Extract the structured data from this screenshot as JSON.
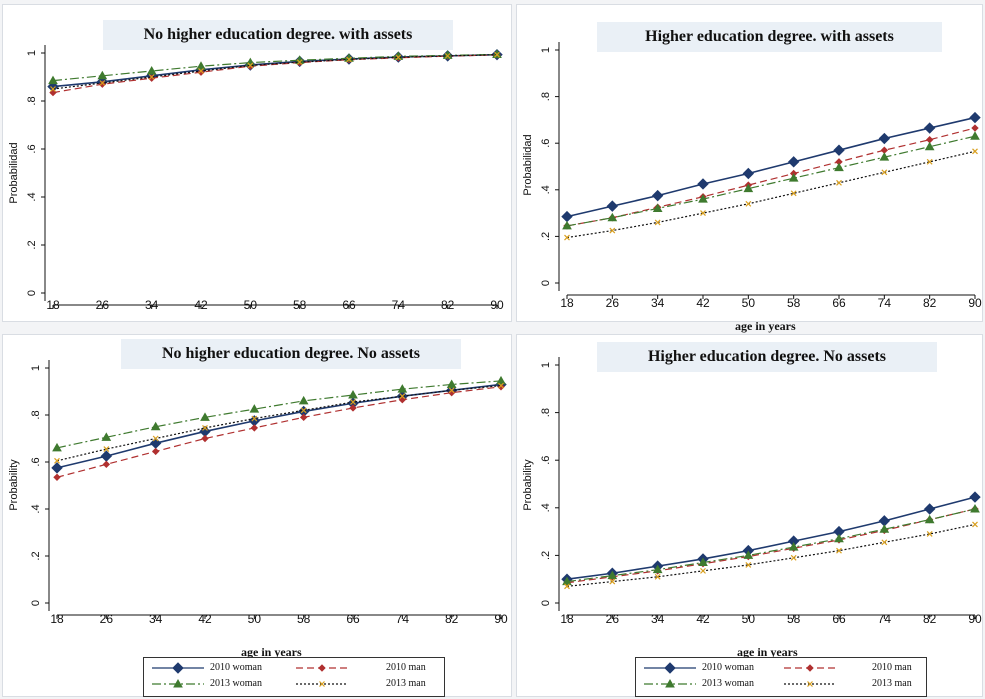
{
  "chart_data": [
    {
      "type": "line",
      "title": "No higher education degree. with assets",
      "ylabel": "Probabilidad",
      "xlabel": "",
      "x": [
        18,
        26,
        34,
        42,
        50,
        58,
        66,
        74,
        82,
        90
      ],
      "ylim": [
        0,
        1
      ],
      "yticks": [
        "0",
        ".2",
        ".4",
        ".6",
        ".8",
        "1"
      ],
      "series": [
        {
          "name": "2010 woman",
          "values": [
            0.86,
            0.88,
            0.905,
            0.93,
            0.95,
            0.965,
            0.975,
            0.983,
            0.988,
            0.993
          ]
        },
        {
          "name": "2010 man",
          "values": [
            0.835,
            0.87,
            0.895,
            0.92,
            0.945,
            0.96,
            0.972,
            0.98,
            0.987,
            0.992
          ]
        },
        {
          "name": "2013 woman",
          "values": [
            0.885,
            0.905,
            0.925,
            0.945,
            0.96,
            0.97,
            0.978,
            0.986,
            0.99,
            0.994
          ]
        },
        {
          "name": "2013 man",
          "values": [
            0.85,
            0.875,
            0.9,
            0.925,
            0.948,
            0.962,
            0.973,
            0.982,
            0.988,
            0.993
          ]
        }
      ]
    },
    {
      "type": "line",
      "title": "Higher education degree. with assets",
      "ylabel": "Probabilidad",
      "xlabel": "age in years",
      "x": [
        18,
        26,
        34,
        42,
        50,
        58,
        66,
        74,
        82,
        90
      ],
      "ylim": [
        0,
        1
      ],
      "yticks": [
        "0",
        ".2",
        ".4",
        ".6",
        ".8",
        "1"
      ],
      "series": [
        {
          "name": "2010 woman",
          "values": [
            0.285,
            0.33,
            0.375,
            0.425,
            0.47,
            0.52,
            0.57,
            0.62,
            0.665,
            0.71
          ]
        },
        {
          "name": "2010 man",
          "values": [
            0.245,
            0.28,
            0.325,
            0.37,
            0.42,
            0.47,
            0.52,
            0.57,
            0.615,
            0.665
          ]
        },
        {
          "name": "2013 woman",
          "values": [
            0.245,
            0.28,
            0.32,
            0.36,
            0.405,
            0.45,
            0.495,
            0.54,
            0.585,
            0.63
          ]
        },
        {
          "name": "2013 man",
          "values": [
            0.195,
            0.225,
            0.26,
            0.3,
            0.34,
            0.385,
            0.43,
            0.475,
            0.52,
            0.565
          ]
        }
      ]
    },
    {
      "type": "line",
      "title": "No higher education degree. No assets",
      "ylabel": "Probability",
      "xlabel": "age in years",
      "x": [
        18,
        26,
        34,
        42,
        50,
        58,
        66,
        74,
        82,
        90
      ],
      "ylim": [
        0,
        1
      ],
      "yticks": [
        "0",
        ".2",
        ".4",
        ".6",
        ".8",
        "1"
      ],
      "series": [
        {
          "name": "2010 woman",
          "values": [
            0.575,
            0.625,
            0.68,
            0.73,
            0.775,
            0.815,
            0.85,
            0.88,
            0.905,
            0.93
          ]
        },
        {
          "name": "2010 man",
          "values": [
            0.535,
            0.59,
            0.645,
            0.7,
            0.745,
            0.79,
            0.83,
            0.865,
            0.895,
            0.92
          ]
        },
        {
          "name": "2013 woman",
          "values": [
            0.66,
            0.705,
            0.75,
            0.79,
            0.825,
            0.86,
            0.885,
            0.91,
            0.93,
            0.945
          ]
        },
        {
          "name": "2013 man",
          "values": [
            0.605,
            0.655,
            0.7,
            0.745,
            0.785,
            0.82,
            0.855,
            0.88,
            0.905,
            0.925
          ]
        }
      ]
    },
    {
      "type": "line",
      "title": "Higher education degree. No assets",
      "ylabel": "Probability",
      "xlabel": "age in years",
      "x": [
        18,
        26,
        34,
        42,
        50,
        58,
        66,
        74,
        82,
        90
      ],
      "ylim": [
        0,
        1
      ],
      "yticks": [
        "0",
        ".2",
        ".4",
        ".6",
        ".8",
        "1"
      ],
      "series": [
        {
          "name": "2010 woman",
          "values": [
            0.1,
            0.125,
            0.155,
            0.185,
            0.22,
            0.26,
            0.3,
            0.345,
            0.395,
            0.445
          ]
        },
        {
          "name": "2010 man",
          "values": [
            0.085,
            0.11,
            0.135,
            0.165,
            0.195,
            0.23,
            0.265,
            0.305,
            0.35,
            0.395
          ]
        },
        {
          "name": "2013 woman",
          "values": [
            0.09,
            0.115,
            0.14,
            0.17,
            0.2,
            0.235,
            0.27,
            0.31,
            0.35,
            0.395
          ]
        },
        {
          "name": "2013 man",
          "values": [
            0.07,
            0.09,
            0.11,
            0.135,
            0.16,
            0.19,
            0.22,
            0.255,
            0.29,
            0.33
          ]
        }
      ]
    }
  ],
  "legend": [
    {
      "label": "2010 woman",
      "key": "w2010"
    },
    {
      "label": "2010 man",
      "key": "m2010"
    },
    {
      "label": "2013 woman",
      "key": "w2013"
    },
    {
      "label": "2013 man",
      "key": "m2013"
    }
  ],
  "styles": {
    "w2010": {
      "color": "#1f3a6e",
      "dash": "",
      "marker": "diamond"
    },
    "m2010": {
      "color": "#b03030",
      "dash": "7,4",
      "marker": "diamond-small"
    },
    "w2013": {
      "color": "#3f7a2f",
      "dash": "9,3,2,3",
      "marker": "triangle"
    },
    "m2013": {
      "color": "#111111",
      "dash": "2,2",
      "marker": "x"
    }
  },
  "series_order": [
    "w2010",
    "m2010",
    "w2013",
    "m2013"
  ],
  "x_axis_title": "age in years"
}
